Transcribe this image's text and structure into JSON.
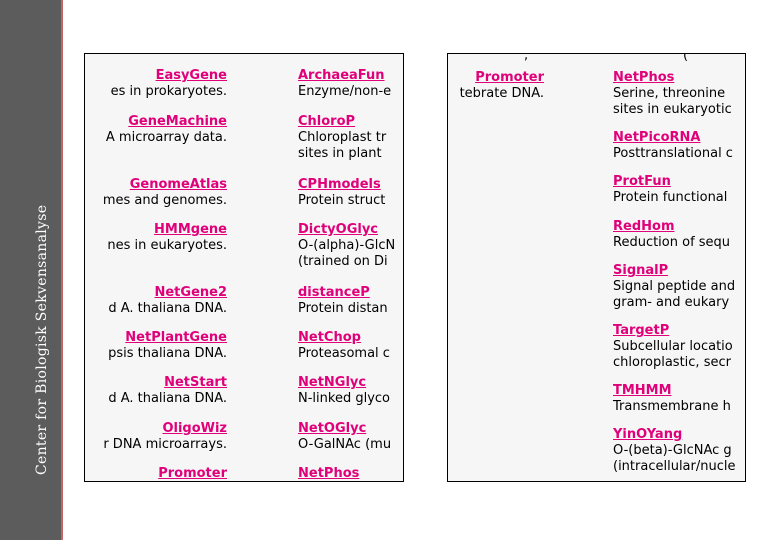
{
  "sidebar": {
    "title": "Center for Biologisk Sekvensanalyse"
  },
  "left_panel": {
    "col1": [
      {
        "name": "EasyGene",
        "desc": [
          "es in prokaryotes."
        ]
      },
      {
        "name": "GeneMachine",
        "desc": [
          "A microarray data."
        ]
      },
      {
        "name": "GenomeAtlas",
        "desc": [
          "mes and genomes."
        ]
      },
      {
        "name": "HMMgene",
        "desc": [
          "nes in eukaryotes."
        ]
      },
      {
        "name": "NetGene2",
        "desc": [
          "d A. thaliana DNA."
        ]
      },
      {
        "name": "NetPlantGene",
        "desc": [
          "psis thaliana DNA."
        ]
      },
      {
        "name": "NetStart",
        "desc": [
          "d A. thaliana DNA."
        ]
      },
      {
        "name": "OligoWiz",
        "desc": [
          "r DNA microarrays."
        ]
      },
      {
        "name": "Promoter",
        "desc": []
      }
    ],
    "col2": [
      {
        "name": "ArchaeaFun",
        "desc": [
          "Enzyme/non-e"
        ]
      },
      {
        "name": "ChloroP",
        "desc": [
          "Chloroplast tr",
          "sites in plant"
        ]
      },
      {
        "name": "CPHmodels",
        "desc": [
          "Protein struct"
        ]
      },
      {
        "name": "DictyOGlyc",
        "desc": [
          "O-(alpha)-GlcN",
          "(trained on Di"
        ]
      },
      {
        "name": "distanceP",
        "desc": [
          "Protein distan"
        ]
      },
      {
        "name": "NetChop",
        "desc": [
          "Proteasomal c"
        ]
      },
      {
        "name": "NetNGlyc",
        "desc": [
          "N-linked glyco"
        ]
      },
      {
        "name": "NetOGlyc",
        "desc": [
          "O-GalNAc (mu"
        ]
      },
      {
        "name": "NetPhos",
        "desc": []
      }
    ]
  },
  "right_panel": {
    "col1": [
      {
        "name": "Promoter",
        "desc": [
          "tebrate DNA."
        ]
      }
    ],
    "col2": [
      {
        "name": "NetPhos",
        "desc": [
          "Serine, threonine",
          "sites in eukaryotic"
        ]
      },
      {
        "name": "NetPicoRNA",
        "desc": [
          "Posttranslational c"
        ]
      },
      {
        "name": "ProtFun",
        "desc": [
          "Protein functional"
        ]
      },
      {
        "name": "RedHom",
        "desc": [
          "Reduction of sequ"
        ]
      },
      {
        "name": "SignalP",
        "desc": [
          "Signal peptide and",
          "gram- and eukary"
        ]
      },
      {
        "name": "TargetP",
        "desc": [
          "Subcellular locatio",
          "chloroplastic, secr"
        ]
      },
      {
        "name": "TMHMM",
        "desc": [
          "Transmembrane h"
        ]
      },
      {
        "name": "YinOYang",
        "desc": [
          "O-(beta)-GlcNAc g",
          "(intracellular/nucle"
        ]
      }
    ]
  }
}
